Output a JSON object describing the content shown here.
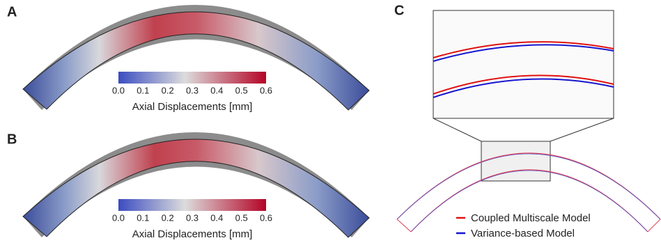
{
  "panels": {
    "a": {
      "label": "A",
      "colorbar": {
        "ticks": [
          "0.0",
          "0.1",
          "0.2",
          "0.3",
          "0.4",
          "0.5",
          "0.6"
        ],
        "title": "Axial Displacements [mm]"
      }
    },
    "b": {
      "label": "B",
      "colorbar": {
        "ticks": [
          "0.0",
          "0.1",
          "0.2",
          "0.3",
          "0.4",
          "0.5",
          "0.6"
        ],
        "title": "Axial Displacements [mm]"
      }
    },
    "c": {
      "label": "C",
      "legend": [
        "Coupled Multiscale Model",
        "Variance-based Model"
      ]
    }
  }
}
